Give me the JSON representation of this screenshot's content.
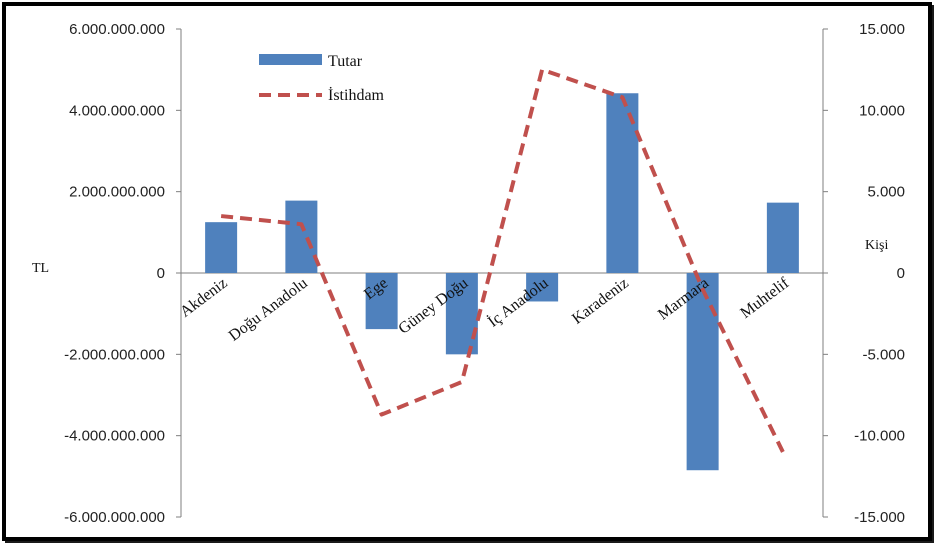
{
  "chart_data": {
    "type": "bar",
    "categories": [
      "Akdeniz",
      "Doğu Anadolu",
      "Ege",
      "Güney Doğu",
      "İç Anadolu",
      "Karadeniz",
      "Marmara",
      "Muhtelif"
    ],
    "series": [
      {
        "name": "Tutar",
        "type": "bar",
        "axis": "left",
        "color": "#4F81BD",
        "values": [
          1250000000,
          1780000000,
          -1380000000,
          -2000000000,
          -700000000,
          4420000000,
          -4850000000,
          1730000000
        ]
      },
      {
        "name": "İstihdam",
        "type": "line",
        "style": "dashed",
        "axis": "right",
        "color": "#C0504D",
        "values": [
          3500,
          3000,
          -8700,
          -6700,
          12500,
          10800,
          -1000,
          -11000
        ]
      }
    ],
    "ylabel_left": "TL",
    "ylabel_right": "Kişi",
    "ylim_left": [
      -6000000000,
      6000000000
    ],
    "ylim_right": [
      -15000,
      15000
    ],
    "yticks_left": [
      "6.000.000.000",
      "4.000.000.000",
      "2.000.000.000",
      "0",
      "-2.000.000.000",
      "-4.000.000.000",
      "-6.000.000.000"
    ],
    "yticks_right": [
      "15.000",
      "10.000",
      "5.000",
      "0",
      "-5.000",
      "-10.000",
      "-15.000"
    ],
    "legend": {
      "position": "top-left",
      "items": [
        "Tutar",
        "İstihdam"
      ]
    },
    "grid": false
  }
}
